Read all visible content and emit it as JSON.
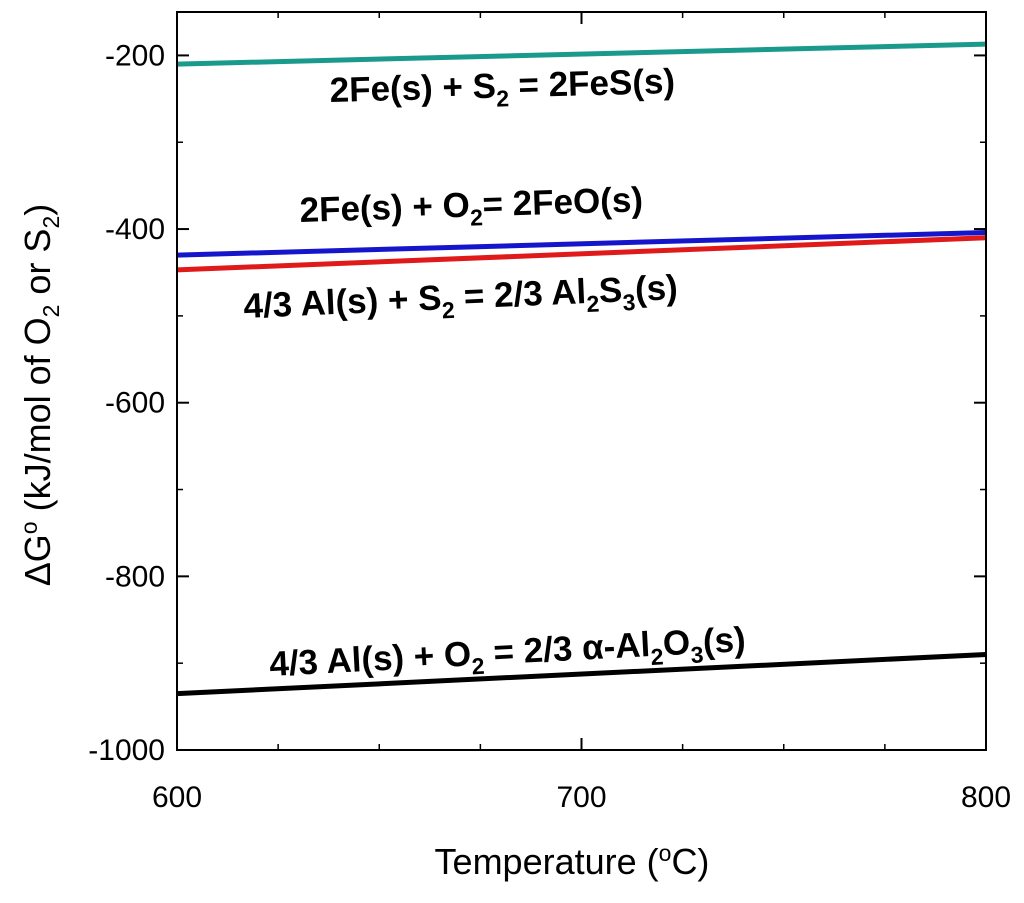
{
  "chart_data": {
    "type": "line",
    "xlabel_main": "Temperature (",
    "xlabel_sup": "o",
    "xlabel_end": "C)",
    "ylabel_main": "ΔG",
    "ylabel_sup": "o",
    "ylabel_mid": " (kJ/mol of O",
    "ylabel_sub1": "2",
    "ylabel_or": " or  S",
    "ylabel_sub2": "2",
    "ylabel_end": ")",
    "xlim": [
      600,
      800
    ],
    "ylim": [
      -1000,
      -150
    ],
    "x_ticks": [
      600,
      700,
      800
    ],
    "y_ticks": [
      -200,
      -400,
      -600,
      -800,
      -1000
    ],
    "x_minor_step": 25,
    "y_minor_step": 100,
    "grid": false,
    "series": [
      {
        "color": "#1a9a8c",
        "x": [
          600,
          800
        ],
        "values": [
          -210,
          -187
        ],
        "label_parts": [
          "2Fe(s) + S",
          "2",
          " = 2FeS(s)"
        ]
      },
      {
        "color": "#1515cc",
        "x": [
          600,
          800
        ],
        "values": [
          -430,
          -404
        ],
        "label_parts": [
          "2Fe(s) + O",
          "2",
          "= 2FeO(s)"
        ]
      },
      {
        "color": "#e01a1a",
        "x": [
          600,
          800
        ],
        "values": [
          -447,
          -410
        ],
        "label_parts": [
          "4/3 Al(s)  + S",
          "2",
          " = 2/3 Al",
          "2",
          "S",
          "3",
          "(s)"
        ]
      },
      {
        "color": "#000000",
        "x": [
          600,
          800
        ],
        "values": [
          -935,
          -890
        ],
        "label_parts": [
          "4/3 Al(s)  + O",
          "2",
          " = 2/3 α-Al",
          "2",
          "O",
          "3",
          "(s)"
        ]
      }
    ]
  }
}
